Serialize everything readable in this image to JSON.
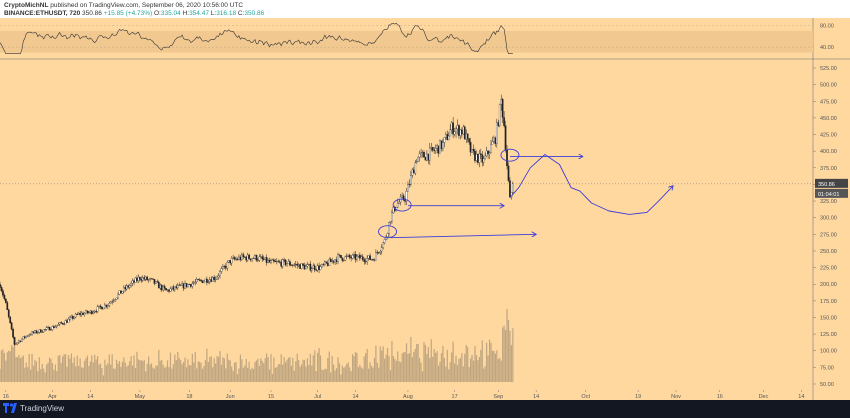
{
  "header": {
    "author": "CryptoMichNL",
    "published_text": "published on TradingView.com, September 06, 2020 10:56:00 UTC",
    "symbol": "BINANCE:ETHUSDT, 720",
    "last_price": "350.86",
    "change": "+15.85 (+4.73%)",
    "ohlc": {
      "o_label": "O:",
      "o": "335.04",
      "h_label": "H:",
      "h": "354.47",
      "l_label": "L:",
      "l": "316.18",
      "c_label": "C:",
      "c": "350.86"
    }
  },
  "footer": {
    "brand": "TradingView"
  },
  "colors": {
    "background": "#ffd8a0",
    "candle_up": "#ffffff",
    "candle_down": "#222222",
    "rsi_line": "#333333",
    "rsi_band": "#f0c890",
    "drawing": "#3d3dd6",
    "volume": "#8a7b66",
    "price_tag": "#444444"
  },
  "chart_data": {
    "type": "candlestick",
    "title": "",
    "price_axis": {
      "min": 50,
      "max": 525,
      "ticks": [
        525,
        500,
        475,
        450,
        425,
        400,
        375,
        350,
        325,
        300,
        275,
        250,
        225,
        200,
        175,
        150,
        125,
        100,
        75,
        50
      ]
    },
    "rsi_axis": {
      "ticks": [
        80,
        40
      ],
      "band": [
        30,
        70
      ]
    },
    "x_axis": {
      "start_date": "2020-03-14",
      "end_date": "2020-12-18",
      "labels": [
        {
          "date": "2020-03-16",
          "label": "16"
        },
        {
          "date": "2020-04-01",
          "label": "Apr"
        },
        {
          "date": "2020-04-14",
          "label": "14"
        },
        {
          "date": "2020-05-01",
          "label": "May"
        },
        {
          "date": "2020-05-18",
          "label": "18"
        },
        {
          "date": "2020-06-01",
          "label": "Jun"
        },
        {
          "date": "2020-06-15",
          "label": "15"
        },
        {
          "date": "2020-07-01",
          "label": "Jul"
        },
        {
          "date": "2020-07-14",
          "label": "14"
        },
        {
          "date": "2020-08-01",
          "label": "Aug"
        },
        {
          "date": "2020-08-17",
          "label": "17"
        },
        {
          "date": "2020-09-01",
          "label": "Sep"
        },
        {
          "date": "2020-09-14",
          "label": "14"
        },
        {
          "date": "2020-10-01",
          "label": "Oct"
        },
        {
          "date": "2020-10-19",
          "label": "19"
        },
        {
          "date": "2020-11-01",
          "label": "Nov"
        },
        {
          "date": "2020-11-16",
          "label": "16"
        },
        {
          "date": "2020-12-01",
          "label": "Dec"
        },
        {
          "date": "2020-12-14",
          "label": "14"
        }
      ]
    },
    "price_path": [
      [
        "2020-03-14",
        200
      ],
      [
        "2020-03-16",
        170
      ],
      [
        "2020-03-19",
        110
      ],
      [
        "2020-03-24",
        125
      ],
      [
        "2020-04-01",
        135
      ],
      [
        "2020-04-06",
        145
      ],
      [
        "2020-04-10",
        155
      ],
      [
        "2020-04-14",
        158
      ],
      [
        "2020-04-20",
        170
      ],
      [
        "2020-04-25",
        190
      ],
      [
        "2020-05-01",
        210
      ],
      [
        "2020-05-05",
        205
      ],
      [
        "2020-05-10",
        190
      ],
      [
        "2020-05-14",
        195
      ],
      [
        "2020-05-18",
        200
      ],
      [
        "2020-05-22",
        205
      ],
      [
        "2020-05-27",
        210
      ],
      [
        "2020-06-01",
        235
      ],
      [
        "2020-06-05",
        240
      ],
      [
        "2020-06-10",
        240
      ],
      [
        "2020-06-15",
        232
      ],
      [
        "2020-06-20",
        232
      ],
      [
        "2020-06-27",
        226
      ],
      [
        "2020-07-02",
        225
      ],
      [
        "2020-07-08",
        240
      ],
      [
        "2020-07-14",
        240
      ],
      [
        "2020-07-20",
        238
      ],
      [
        "2020-07-24",
        265
      ],
      [
        "2020-07-26",
        300
      ],
      [
        "2020-07-28",
        320
      ],
      [
        "2020-07-31",
        330
      ],
      [
        "2020-08-02",
        360
      ],
      [
        "2020-08-04",
        390
      ],
      [
        "2020-08-08",
        395
      ],
      [
        "2020-08-13",
        410
      ],
      [
        "2020-08-16",
        435
      ],
      [
        "2020-08-20",
        430
      ],
      [
        "2020-08-23",
        395
      ],
      [
        "2020-08-27",
        385
      ],
      [
        "2020-08-31",
        420
      ],
      [
        "2020-09-02",
        475
      ],
      [
        "2020-09-03",
        440
      ],
      [
        "2020-09-04",
        380
      ],
      [
        "2020-09-05",
        325
      ],
      [
        "2020-09-06",
        351
      ]
    ],
    "price_high": 485,
    "last_price": 350.86,
    "countdown": "01:04:01",
    "annotations": {
      "ellipses": [
        {
          "date": "2020-07-25",
          "price": 279
        },
        {
          "date": "2020-07-30",
          "price": 319
        },
        {
          "date": "2020-09-05",
          "price": 394
        }
      ],
      "arrows": [
        {
          "from": [
            "2020-07-26",
            270
          ],
          "to": [
            "2020-09-14",
            275
          ]
        },
        {
          "from": [
            "2020-08-01",
            318
          ],
          "to": [
            "2020-09-03",
            318
          ]
        },
        {
          "from": [
            "2020-09-05",
            392
          ],
          "to": [
            "2020-09-30",
            392
          ]
        }
      ],
      "projection": [
        [
          "2020-09-05",
          330
        ],
        [
          "2020-09-08",
          345
        ],
        [
          "2020-09-12",
          375
        ],
        [
          "2020-09-17",
          395
        ],
        [
          "2020-09-22",
          380
        ],
        [
          "2020-09-26",
          345
        ],
        [
          "2020-09-29",
          340
        ],
        [
          "2020-10-03",
          322
        ],
        [
          "2020-10-09",
          310
        ],
        [
          "2020-10-16",
          305
        ],
        [
          "2020-10-22",
          308
        ],
        [
          "2020-10-26",
          325
        ],
        [
          "2020-10-31",
          348
        ]
      ]
    }
  }
}
